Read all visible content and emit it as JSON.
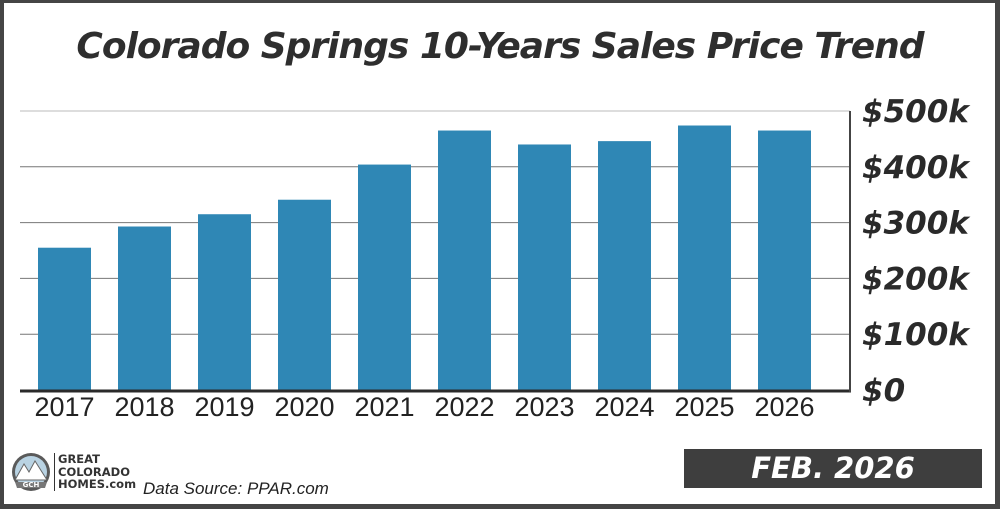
{
  "title": "Colorado Springs 10-Years Sales Price Trend",
  "badge": "FEB. 2026",
  "source": "Data Source: PPAR.com",
  "logo": {
    "line1": "GREAT",
    "line2": "COLORADO",
    "line3": "HOMES.com",
    "mark": "GCH"
  },
  "chart_data": {
    "type": "bar",
    "title": "Colorado Springs 10-Years Sales Price Trend",
    "categories": [
      "2017",
      "2018",
      "2019",
      "2020",
      "2021",
      "2022",
      "2023",
      "2024",
      "2025",
      "2026"
    ],
    "values": [
      255000,
      293000,
      315000,
      341000,
      404000,
      465000,
      440000,
      446000,
      474000,
      465000
    ],
    "ylim": [
      0,
      500000
    ],
    "yticks": [
      0,
      100000,
      200000,
      300000,
      400000,
      500000
    ],
    "ytick_labels": [
      "$0",
      "$100k",
      "$200k",
      "$300k",
      "$400k",
      "$500k"
    ],
    "yaxis_side": "right",
    "grid": true,
    "bar_color": "#2f87b5",
    "xlabel": "",
    "ylabel": ""
  }
}
